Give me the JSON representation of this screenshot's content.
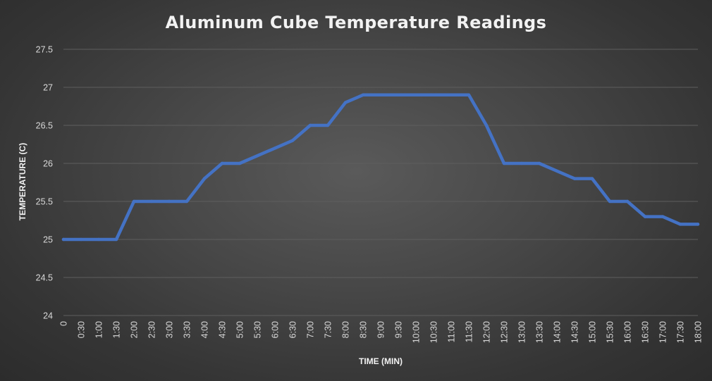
{
  "chart_data": {
    "type": "line",
    "title": "Aluminum Cube Temperature Readings",
    "xlabel": "TIME (MIN)",
    "ylabel": "TEMPERATURE (C)",
    "ylim": [
      24,
      27.5
    ],
    "yticks": [
      "24",
      "24.5",
      "25",
      "25.5",
      "26",
      "26.5",
      "27",
      "27.5"
    ],
    "grid": true,
    "legend": "none",
    "categories": [
      "0",
      "0:30",
      "1:00",
      "1:30",
      "2:00",
      "2:30",
      "3:00",
      "3:30",
      "4:00",
      "4:30",
      "5:00",
      "5:30",
      "6:00",
      "6:30",
      "7:00",
      "7:30",
      "8:00",
      "8:30",
      "9:00",
      "9:30",
      "10:00",
      "10:30",
      "11:00",
      "11:30",
      "12:00",
      "12:30",
      "13:00",
      "13:30",
      "14:00",
      "14:30",
      "15:00",
      "15:30",
      "16:00",
      "16:30",
      "17:00",
      "17:30",
      "18:00"
    ],
    "series": [
      {
        "values": [
          25,
          25,
          25,
          25,
          25.5,
          25.5,
          25.5,
          25.5,
          25.8,
          26,
          26,
          26.1,
          26.2,
          26.3,
          26.5,
          26.5,
          26.8,
          26.9,
          26.9,
          26.9,
          26.9,
          26.9,
          26.9,
          26.9,
          26.5,
          26,
          26,
          26,
          25.9,
          25.8,
          25.8,
          25.5,
          25.5,
          25.3,
          25.3,
          25.2,
          25.2
        ],
        "color": "#4472c4"
      }
    ]
  },
  "colors": {
    "gridline": "#5e5e5e",
    "text": "#d9d9d9",
    "title": "#f2f2f2"
  }
}
